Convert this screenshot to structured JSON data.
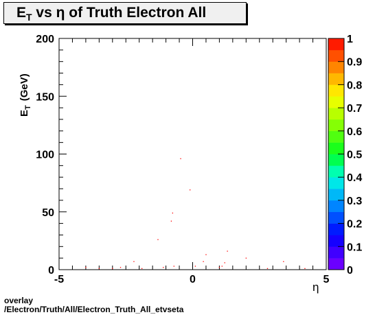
{
  "chart_data": {
    "type": "scatter",
    "title": "vs  of Truth Electron All",
    "title_parts": {
      "main": "E",
      "sub": "T",
      "greek": "η",
      "rest": "of Truth Electron All"
    },
    "xlabel": "η",
    "ylabel": {
      "main": "E",
      "sub": "T",
      "unit": "(GeV)"
    },
    "xlim": [
      -5,
      5
    ],
    "ylim": [
      0,
      200
    ],
    "x_ticks": [
      "-5",
      "0",
      "5"
    ],
    "y_ticks": [
      "0",
      "50",
      "100",
      "150",
      "200"
    ],
    "colorbar": {
      "range": [
        0,
        1
      ],
      "ticks": [
        "0",
        "0.1",
        "0.2",
        "0.3",
        "0.4",
        "0.5",
        "0.6",
        "0.7",
        "0.8",
        "0.9",
        "1"
      ]
    },
    "point_color": "#ff0000",
    "points": [
      {
        "x": -4.0,
        "y": 2
      },
      {
        "x": -3.5,
        "y": 1
      },
      {
        "x": -3.0,
        "y": 1
      },
      {
        "x": -2.7,
        "y": 2
      },
      {
        "x": -2.2,
        "y": 7
      },
      {
        "x": -1.9,
        "y": 1
      },
      {
        "x": -1.3,
        "y": 26
      },
      {
        "x": -1.1,
        "y": 2
      },
      {
        "x": -0.8,
        "y": 42
      },
      {
        "x": -0.75,
        "y": 49
      },
      {
        "x": -0.7,
        "y": 3
      },
      {
        "x": -0.45,
        "y": 96
      },
      {
        "x": -0.1,
        "y": 69
      },
      {
        "x": 0.1,
        "y": 3
      },
      {
        "x": 0.4,
        "y": 7
      },
      {
        "x": 0.5,
        "y": 13
      },
      {
        "x": 1.0,
        "y": 2
      },
      {
        "x": 1.1,
        "y": 3
      },
      {
        "x": 1.2,
        "y": 6
      },
      {
        "x": 1.3,
        "y": 16
      },
      {
        "x": 2.0,
        "y": 10
      },
      {
        "x": 2.8,
        "y": 1
      },
      {
        "x": 3.4,
        "y": 7
      },
      {
        "x": 4.2,
        "y": 1
      }
    ]
  },
  "footer": {
    "line1": "overlay",
    "line2": "/Electron/Truth/All/Electron_Truth_All_etvseta"
  }
}
